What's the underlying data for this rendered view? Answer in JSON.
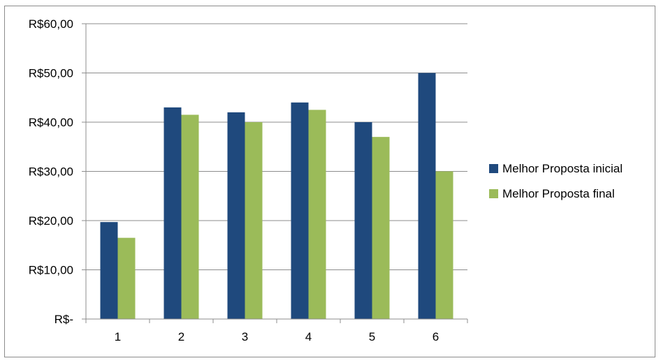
{
  "chart_data": {
    "type": "bar",
    "title": "",
    "xlabel": "",
    "ylabel": "",
    "categories": [
      "1",
      "2",
      "3",
      "4",
      "5",
      "6"
    ],
    "series": [
      {
        "name": "Melhor Proposta inicial",
        "color": "#1f497d",
        "values": [
          19.7,
          43,
          42,
          44,
          40,
          50
        ]
      },
      {
        "name": "Melhor Proposta final",
        "color": "#9bbb59",
        "values": [
          16.5,
          41.5,
          40,
          42.5,
          37,
          30
        ]
      }
    ],
    "ylim": [
      0,
      60
    ],
    "yticks": [
      0,
      10,
      20,
      30,
      40,
      50,
      60
    ],
    "ytick_labels": [
      "R$-",
      "R$10,00",
      "R$20,00",
      "R$30,00",
      "R$40,00",
      "R$50,00",
      "R$60,00"
    ],
    "grid": true,
    "legend_position": "right"
  }
}
